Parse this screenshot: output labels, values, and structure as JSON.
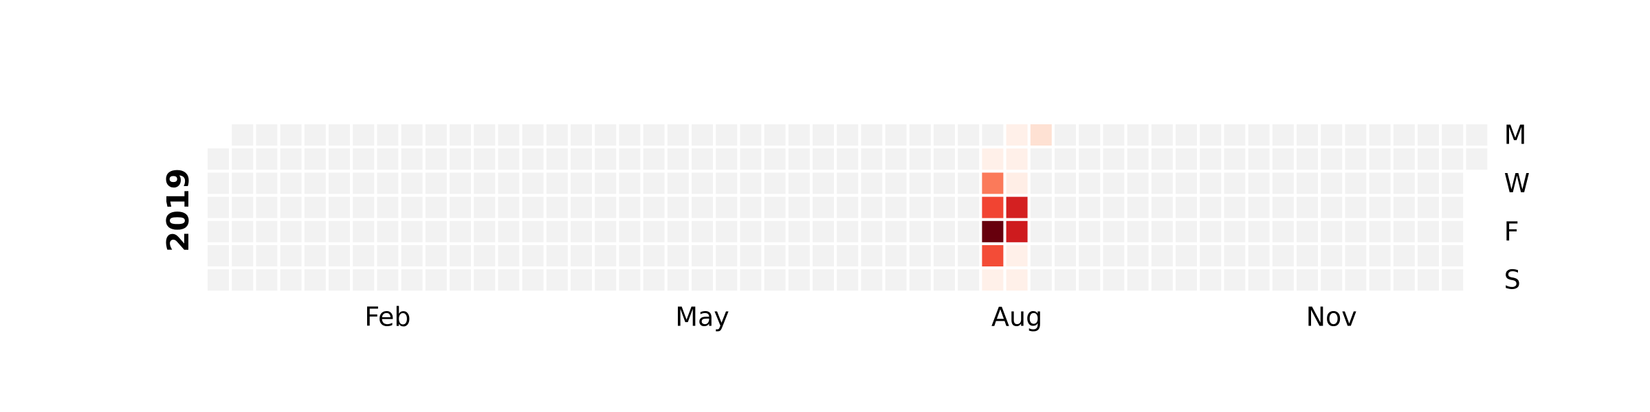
{
  "chart_data": {
    "type": "heatmap",
    "subtype": "calendar",
    "year": "2019",
    "title": "",
    "month_labels": [
      {
        "label": "Feb",
        "week": 7
      },
      {
        "label": "May",
        "week": 20
      },
      {
        "label": "Aug",
        "week": 33
      },
      {
        "label": "Nov",
        "week": 46
      }
    ],
    "day_labels": [
      {
        "label": "M",
        "weekday": 0
      },
      {
        "label": "W",
        "weekday": 2
      },
      {
        "label": "F",
        "weekday": 4
      },
      {
        "label": "S",
        "weekday": 6
      }
    ],
    "weeks": 53,
    "first_weekday": 1,
    "days_in_year": 365,
    "empty_color": "#f2f2f2",
    "colorscale": "Reds",
    "vmin": 0,
    "vmax": 1,
    "nonzero_days": [
      {
        "date": "2019-08-13",
        "value": 0.03
      },
      {
        "date": "2019-08-14",
        "value": 0.45
      },
      {
        "date": "2019-08-15",
        "value": 0.6
      },
      {
        "date": "2019-08-16",
        "value": 1.0
      },
      {
        "date": "2019-08-17",
        "value": 0.58
      },
      {
        "date": "2019-08-18",
        "value": 0.03
      },
      {
        "date": "2019-08-19",
        "value": 0.03
      },
      {
        "date": "2019-08-20",
        "value": 0.03
      },
      {
        "date": "2019-08-21",
        "value": 0.04
      },
      {
        "date": "2019-08-22",
        "value": 0.72
      },
      {
        "date": "2019-08-23",
        "value": 0.74
      },
      {
        "date": "2019-08-24",
        "value": 0.03
      },
      {
        "date": "2019-08-25",
        "value": 0.03
      },
      {
        "date": "2019-08-26",
        "value": 0.12
      }
    ]
  }
}
